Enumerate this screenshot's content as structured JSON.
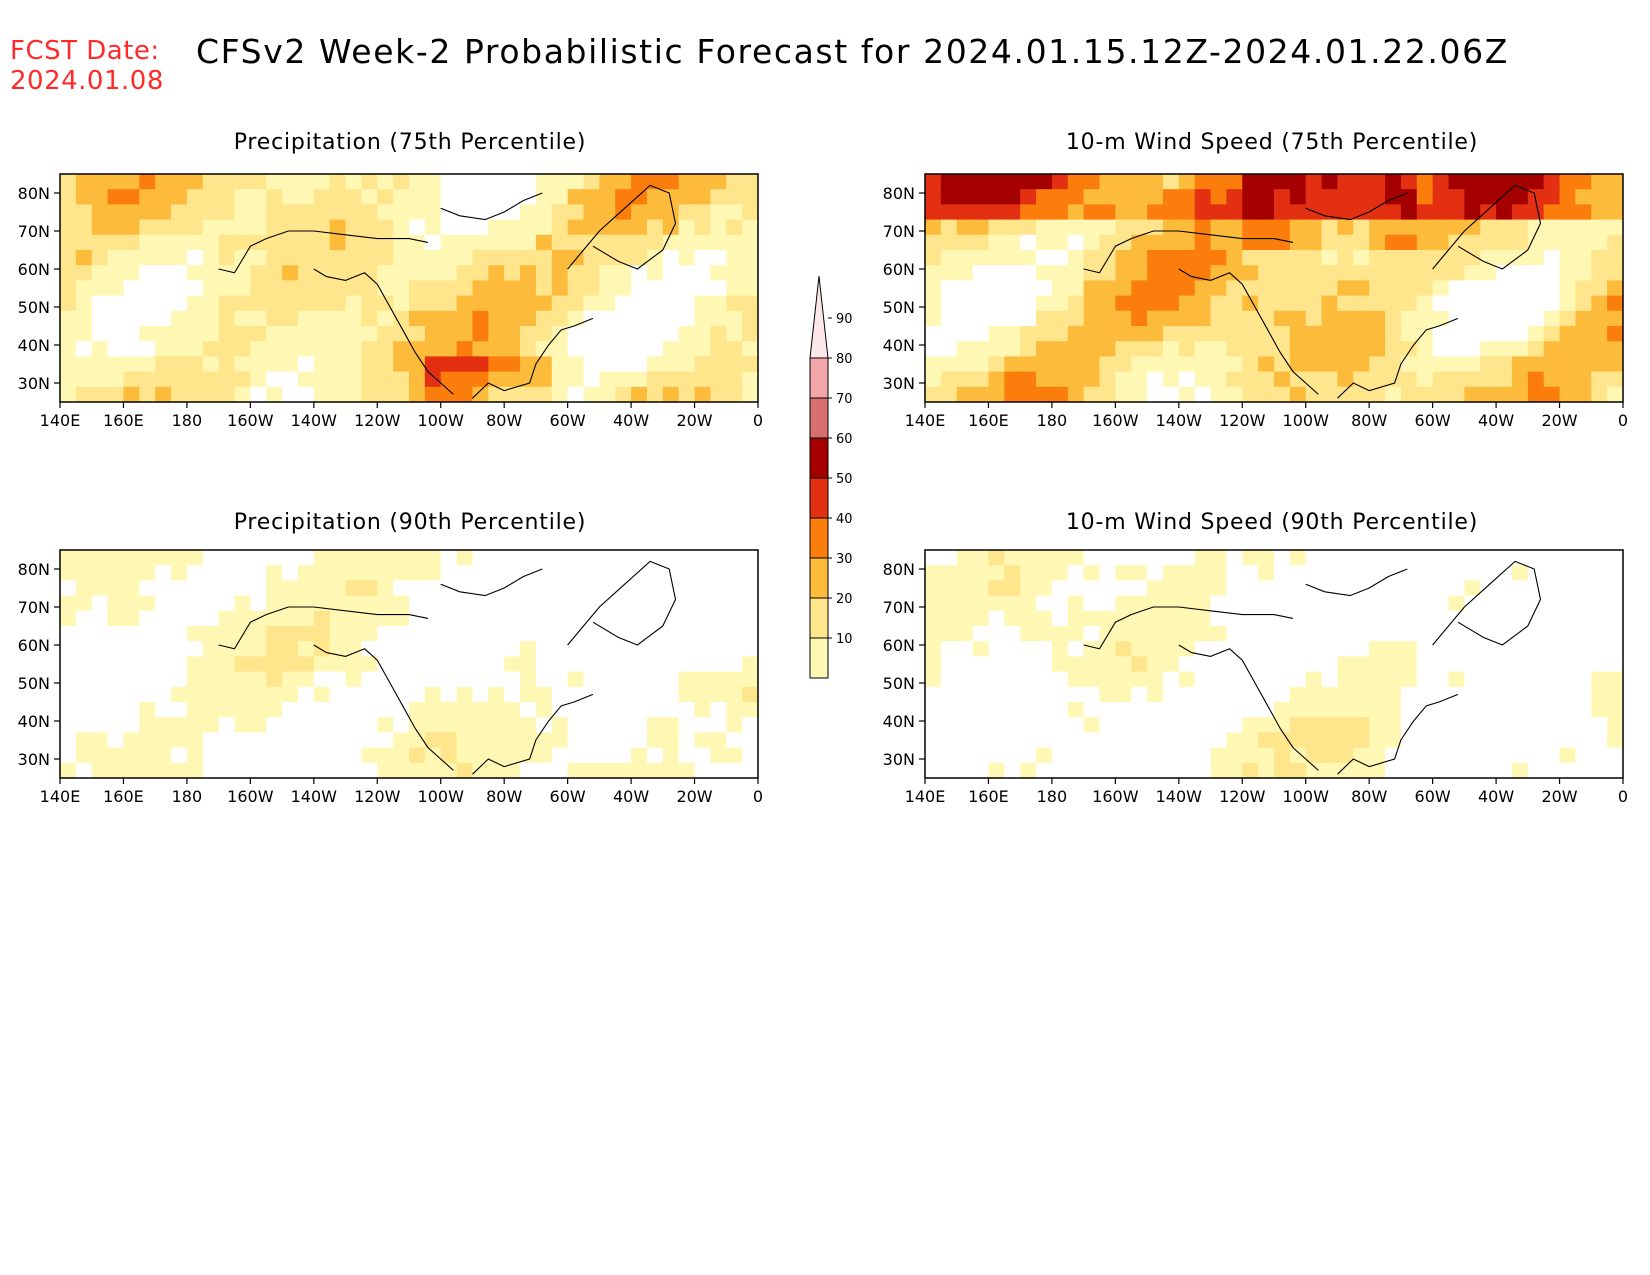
{
  "header": {
    "fcst_label": "FCST Date:",
    "fcst_date": "2024.01.08",
    "title": "CFSv2 Week-2 Probabilistic Forecast for 2024.01.15.12Z-2024.01.22.06Z"
  },
  "colors": {
    "fcst_text": "#ff2a2a",
    "levels": [
      "#ffffff",
      "#fff8b4",
      "#ffe68c",
      "#fdbb3c",
      "#fb7d0c",
      "#e43012",
      "#a40000",
      "#d86f6f",
      "#f3a6aa",
      "#fde6e9"
    ]
  },
  "axes": {
    "lat_ticks": [
      "80N",
      "70N",
      "60N",
      "50N",
      "40N",
      "30N"
    ],
    "lon_ticks": [
      "140E",
      "160E",
      "180",
      "160W",
      "140W",
      "120W",
      "100W",
      "80W",
      "60W",
      "40W",
      "20W",
      "0"
    ]
  },
  "panels": [
    {
      "id": "precip-75",
      "title": "Precipitation (75th Percentile)"
    },
    {
      "id": "wind-75",
      "title": "10-m Wind Speed (75th Percentile)"
    },
    {
      "id": "precip-90",
      "title": "Precipitation (90th Percentile)"
    },
    {
      "id": "wind-90",
      "title": "10-m Wind Speed (90th Percentile)"
    }
  ],
  "colorbar": {
    "levels": [
      "10",
      "20",
      "30",
      "40",
      "50",
      "60",
      "70",
      "80",
      "90"
    ]
  }
}
